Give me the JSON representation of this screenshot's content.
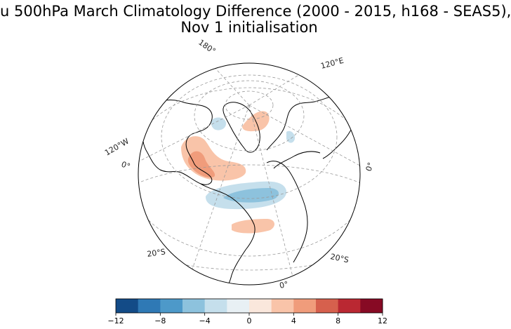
{
  "title": {
    "line1": "u 500hPa March Climatology Difference (2000 - 2015, h168 - SEAS5),",
    "line2": "Nov 1 initialisation"
  },
  "map": {
    "projection": "orthographic",
    "gridline_labels": {
      "lon_180": "180°",
      "lon_120e": "120°E",
      "lon_120w": "120°W",
      "lon_0_left": "0°",
      "lon_0_right": "0°",
      "lon_0_bottom": "0°",
      "lat_20s_left": "20°S",
      "lat_20s_right": "20°S"
    }
  },
  "colorbar": {
    "colors": [
      "#134b87",
      "#2f79b5",
      "#4d99c9",
      "#8dc2dd",
      "#c5dfec",
      "#e8f0f4",
      "#fae7dc",
      "#f9c4a9",
      "#f09c7b",
      "#d6604d",
      "#ba2832",
      "#870a24"
    ],
    "boundaries": [
      -12,
      -10,
      -8,
      -6,
      -4,
      -2,
      0,
      2,
      4,
      6,
      8,
      10,
      12
    ],
    "tick_labels": [
      "−12",
      "−8",
      "−4",
      "0",
      "4",
      "8",
      "12"
    ]
  }
}
